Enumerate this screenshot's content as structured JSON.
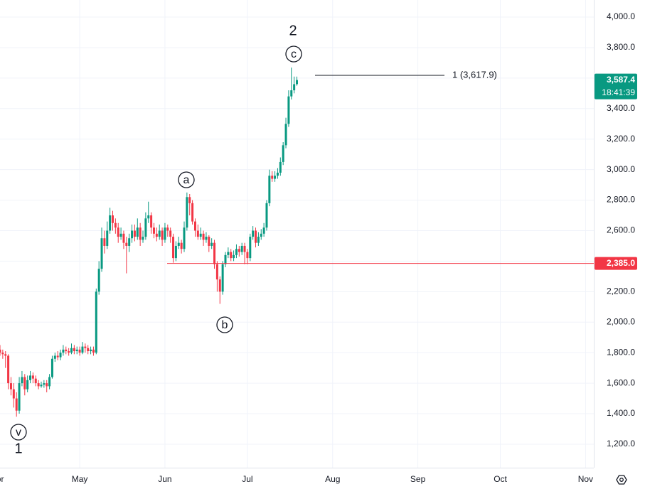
{
  "chart_data": {
    "type": "candlestick",
    "xlim": [
      1,
      217
    ],
    "xticks": [
      {
        "value": 0,
        "label": "Apr"
      },
      {
        "value": 30,
        "label": "May"
      },
      {
        "value": 61,
        "label": "Jun"
      },
      {
        "value": 91,
        "label": "Jul"
      },
      {
        "value": 122,
        "label": "Aug"
      },
      {
        "value": 153,
        "label": "Sep"
      },
      {
        "value": 183,
        "label": "Oct"
      },
      {
        "value": 214,
        "label": "Nov"
      }
    ],
    "ylim": [
      1046,
      4112
    ],
    "yticks": [
      {
        "value": 1200,
        "label": "1,200.0"
      },
      {
        "value": 1400,
        "label": "1,400.0"
      },
      {
        "value": 1600,
        "label": "1,600.0"
      },
      {
        "value": 1800,
        "label": "1,800.0"
      },
      {
        "value": 2000,
        "label": "2,000.0"
      },
      {
        "value": 2200,
        "label": "2,200.0"
      },
      {
        "value": 2400,
        "label": "2,400.0"
      },
      {
        "value": 2600,
        "label": "2,600.0"
      },
      {
        "value": 2800,
        "label": "2,800.0"
      },
      {
        "value": 3000,
        "label": "3,000.0"
      },
      {
        "value": 3200,
        "label": "3,200.0"
      },
      {
        "value": 3400,
        "label": "3,400.0"
      },
      {
        "value": 3600,
        "label": "3,600.0"
      },
      {
        "value": 3800,
        "label": "3,800.0"
      },
      {
        "value": 4000,
        "label": "4,000.0"
      }
    ],
    "grid": true,
    "up_color": "#089981",
    "down_color": "#f23645",
    "x": [
      1,
      2,
      3,
      4,
      5,
      6,
      7,
      8,
      9,
      10,
      11,
      12,
      13,
      14,
      15,
      16,
      17,
      18,
      19,
      20,
      21,
      22,
      23,
      24,
      25,
      26,
      27,
      28,
      29,
      30,
      31,
      32,
      33,
      34,
      35,
      36,
      37,
      38,
      39,
      40,
      41,
      42,
      43,
      44,
      45,
      46,
      47,
      48,
      49,
      50,
      51,
      52,
      53,
      54,
      55,
      56,
      57,
      58,
      59,
      60,
      61,
      62,
      63,
      64,
      65,
      66,
      67,
      68,
      69,
      70,
      71,
      72,
      73,
      74,
      75,
      76,
      77,
      78,
      79,
      80,
      81,
      82,
      83,
      84,
      85,
      86,
      87,
      88,
      89,
      90,
      91,
      92,
      93,
      94,
      95,
      96,
      97,
      98,
      99,
      100,
      101,
      102,
      103,
      104,
      105,
      106,
      107,
      108,
      109
    ],
    "open": [
      1820,
      1800,
      1790,
      1780,
      1600,
      1560,
      1500,
      1420,
      1600,
      1640,
      1560,
      1620,
      1650,
      1630,
      1600,
      1580,
      1590,
      1600,
      1580,
      1640,
      1760,
      1780,
      1770,
      1800,
      1820,
      1810,
      1800,
      1830,
      1810,
      1820,
      1800,
      1840,
      1830,
      1810,
      1820,
      1800,
      2200,
      2350,
      2550,
      2500,
      2600,
      2700,
      2650,
      2620,
      2560,
      2580,
      2520,
      2500,
      2550,
      2600,
      2560,
      2620,
      2540,
      2560,
      2680,
      2700,
      2620,
      2580,
      2560,
      2600,
      2540,
      2620,
      2600,
      2560,
      2420,
      2500,
      2520,
      2480,
      2620,
      2820,
      2780,
      2660,
      2600,
      2560,
      2580,
      2540,
      2560,
      2500,
      2520,
      2380,
      2280,
      2200,
      2380,
      2440,
      2460,
      2420,
      2440,
      2480,
      2460,
      2500,
      2460,
      2420,
      2560,
      2600,
      2520,
      2560,
      2580,
      2620,
      2780,
      2960,
      2940,
      2960,
      2980,
      3050,
      3160,
      3300,
      3480,
      3520,
      3560
    ],
    "high": [
      1850,
      1820,
      1810,
      1790,
      1640,
      1600,
      1540,
      1640,
      1680,
      1660,
      1650,
      1680,
      1670,
      1650,
      1620,
      1610,
      1620,
      1620,
      1660,
      1780,
      1800,
      1810,
      1820,
      1850,
      1840,
      1830,
      1860,
      1850,
      1840,
      1840,
      1870,
      1860,
      1850,
      1840,
      1840,
      2220,
      2400,
      2620,
      2600,
      2660,
      2750,
      2730,
      2680,
      2650,
      2620,
      2600,
      2560,
      2580,
      2640,
      2640,
      2680,
      2650,
      2600,
      2720,
      2790,
      2720,
      2650,
      2620,
      2640,
      2620,
      2650,
      2640,
      2620,
      2580,
      2530,
      2560,
      2540,
      2660,
      2850,
      2840,
      2800,
      2680,
      2640,
      2620,
      2600,
      2590,
      2570,
      2550,
      2540,
      2400,
      2300,
      2400,
      2460,
      2490,
      2480,
      2470,
      2510,
      2500,
      2520,
      2520,
      2480,
      2580,
      2630,
      2620,
      2590,
      2610,
      2650,
      2800,
      3000,
      2990,
      2990,
      3010,
      3080,
      3180,
      3340,
      3520,
      3669,
      3610,
      3610
    ],
    "low": [
      1780,
      1760,
      1700,
      1560,
      1520,
      1440,
      1380,
      1400,
      1580,
      1520,
      1540,
      1600,
      1600,
      1580,
      1560,
      1570,
      1570,
      1540,
      1560,
      1630,
      1740,
      1750,
      1750,
      1780,
      1790,
      1780,
      1790,
      1790,
      1790,
      1780,
      1790,
      1800,
      1790,
      1790,
      1780,
      1790,
      2180,
      2330,
      2450,
      2480,
      2580,
      2600,
      2580,
      2520,
      2540,
      2480,
      2320,
      2460,
      2520,
      2530,
      2540,
      2500,
      2520,
      2540,
      2650,
      2580,
      2550,
      2530,
      2540,
      2500,
      2520,
      2560,
      2520,
      2390,
      2400,
      2480,
      2450,
      2460,
      2600,
      2700,
      2640,
      2560,
      2540,
      2540,
      2500,
      2520,
      2460,
      2480,
      2350,
      2200,
      2120,
      2180,
      2360,
      2420,
      2400,
      2400,
      2420,
      2430,
      2440,
      2380,
      2380,
      2400,
      2540,
      2490,
      2500,
      2540,
      2560,
      2600,
      2760,
      2920,
      2920,
      2940,
      2960,
      3030,
      3140,
      3280,
      3460,
      3500,
      3550
    ],
    "close": [
      1800,
      1790,
      1780,
      1600,
      1560,
      1500,
      1420,
      1600,
      1640,
      1560,
      1620,
      1650,
      1630,
      1600,
      1580,
      1590,
      1600,
      1580,
      1640,
      1760,
      1780,
      1770,
      1800,
      1820,
      1810,
      1800,
      1830,
      1810,
      1820,
      1800,
      1840,
      1830,
      1810,
      1820,
      1800,
      2200,
      2350,
      2550,
      2500,
      2600,
      2700,
      2650,
      2620,
      2560,
      2580,
      2520,
      2500,
      2550,
      2600,
      2560,
      2620,
      2540,
      2560,
      2680,
      2700,
      2620,
      2580,
      2560,
      2600,
      2540,
      2620,
      2600,
      2560,
      2420,
      2500,
      2520,
      2480,
      2620,
      2820,
      2780,
      2660,
      2600,
      2560,
      2580,
      2540,
      2560,
      2500,
      2520,
      2380,
      2280,
      2200,
      2380,
      2440,
      2460,
      2420,
      2440,
      2480,
      2460,
      2500,
      2460,
      2420,
      2560,
      2600,
      2520,
      2560,
      2580,
      2620,
      2780,
      2960,
      2940,
      2960,
      2980,
      3050,
      3160,
      3300,
      3480,
      3520,
      3560,
      3587.4
    ],
    "annotations": [
      "2",
      "c",
      "a",
      "b",
      "v",
      "1"
    ],
    "fib_level": {
      "value": 3617.9,
      "label": "1 (3,617.9)"
    },
    "support_line": {
      "value": 2385,
      "label": "2,385.0",
      "color": "#f23645"
    },
    "last_price": {
      "value": 3587.4,
      "label": "3,587.4",
      "countdown": "18:41:39",
      "color": "#089981"
    }
  }
}
